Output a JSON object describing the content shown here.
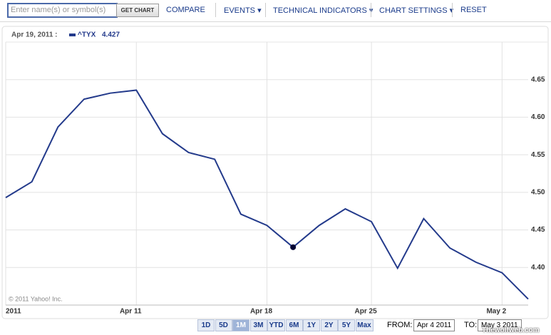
{
  "toolbar": {
    "search_placeholder": "Enter name(s) or symbol(s)",
    "get_chart": "GET CHART",
    "compare": "COMPARE",
    "events": "EVENTS",
    "technical_indicators": "TECHNICAL INDICATORS",
    "chart_settings": "CHART SETTINGS",
    "reset": "RESET"
  },
  "chart_data": {
    "type": "line",
    "hover_label": "Apr 19, 2011 :",
    "x": [
      "2011-04-04",
      "2011-04-05",
      "2011-04-06",
      "2011-04-07",
      "2011-04-08",
      "2011-04-11",
      "2011-04-12",
      "2011-04-13",
      "2011-04-14",
      "2011-04-15",
      "2011-04-18",
      "2011-04-19",
      "2011-04-20",
      "2011-04-21",
      "2011-04-25",
      "2011-04-26",
      "2011-04-27",
      "2011-04-28",
      "2011-04-29",
      "2011-05-02",
      "2011-05-03"
    ],
    "series": [
      {
        "name": "^TYX",
        "color": "#233a8b",
        "values": [
          4.493,
          4.514,
          4.587,
          4.624,
          4.632,
          4.636,
          4.578,
          4.553,
          4.544,
          4.471,
          4.456,
          4.427,
          4.456,
          4.478,
          4.461,
          4.399,
          4.465,
          4.426,
          4.407,
          4.393,
          4.358
        ]
      }
    ],
    "highlight_index": 11,
    "ylim": [
      4.35,
      4.7
    ],
    "yticks": [
      {
        "value": 4.4,
        "label": "4.40"
      },
      {
        "value": 4.45,
        "label": "4.45"
      },
      {
        "value": 4.5,
        "label": "4.50"
      },
      {
        "value": 4.55,
        "label": "4.55"
      },
      {
        "value": 4.6,
        "label": "4.60"
      },
      {
        "value": 4.65,
        "label": "4.65"
      }
    ],
    "xticks": [
      {
        "value": "2011-04-04",
        "label": "2011"
      },
      {
        "value": "2011-04-11",
        "label": "Apr 11"
      },
      {
        "value": "2011-04-18",
        "label": "Apr 18"
      },
      {
        "value": "2011-04-25",
        "label": "Apr 25"
      },
      {
        "value": "2011-05-02",
        "label": "May 2"
      }
    ],
    "grid": true,
    "copyright": "© 2011 Yahoo! Inc."
  },
  "ranges": [
    "1D",
    "5D",
    "1M",
    "3M",
    "YTD",
    "6M",
    "1Y",
    "2Y",
    "5Y",
    "Max"
  ],
  "active_range": 2,
  "from_label": "FROM:",
  "from_date": "Apr 4 2011",
  "to_label": "TO:",
  "to_date": "May 3 2011",
  "watermark": "Thewolfweb.com"
}
